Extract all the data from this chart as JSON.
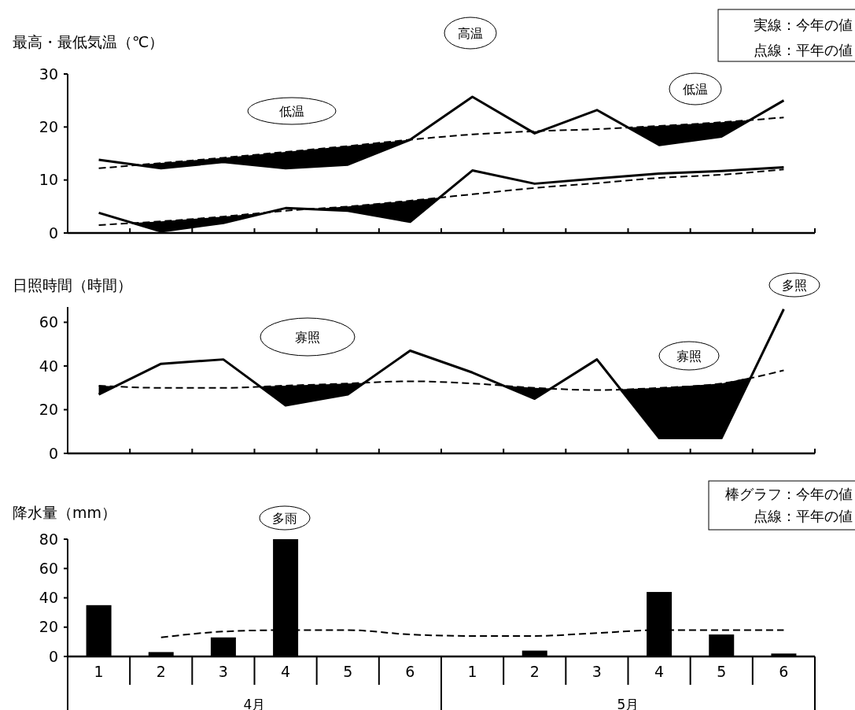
{
  "chart_data": [
    {
      "type": "line",
      "title": "最高・最低気温（℃）",
      "categories": [
        null,
        null,
        null,
        null,
        null,
        null,
        null,
        null,
        null,
        null,
        null,
        null
      ],
      "ylim": [
        0,
        30
      ],
      "yticks": [
        0,
        10,
        20,
        30
      ],
      "tick_labels": "y",
      "grid": false,
      "series": [
        {
          "color": "#000000",
          "line_style": "solid",
          "values": [
            13.8,
            12.2,
            13.4,
            12.2,
            12.9,
            17.6,
            25.7,
            18.8,
            23.2,
            16.6,
            18.2,
            25.0
          ]
        },
        {
          "color": "#000000",
          "line_style": "dashed",
          "values": [
            12.2,
            13.2,
            14.2,
            15.3,
            16.4,
            17.6,
            18.6,
            19.2,
            19.6,
            20.2,
            20.9,
            21.8
          ]
        },
        {
          "color": "#000000",
          "line_style": "solid",
          "values": [
            3.8,
            0.3,
            1.9,
            4.7,
            4.2,
            2.1,
            11.8,
            9.3,
            10.3,
            11.2,
            11.7,
            12.4
          ]
        },
        {
          "color": "#000000",
          "line_style": "dashed",
          "values": [
            1.5,
            2.2,
            3.1,
            4.2,
            5.0,
            6.1,
            7.3,
            8.5,
            9.4,
            10.4,
            11.0,
            12.0
          ]
        }
      ],
      "annotations": [
        "低温",
        "高温",
        "低温",
        "実線：今年の値",
        "点線：平年の値"
      ]
    },
    {
      "type": "line",
      "title": "日照時間（時間）",
      "categories": [
        null,
        null,
        null,
        null,
        null,
        null,
        null,
        null,
        null,
        null,
        null,
        null
      ],
      "ylim": [
        0,
        67
      ],
      "yticks": [
        0,
        20,
        40,
        60
      ],
      "tick_labels": "y",
      "grid": false,
      "series": [
        {
          "color": "#000000",
          "line_style": "solid",
          "values": [
            27,
            41,
            43,
            22,
            27,
            47,
            37,
            25,
            43,
            7,
            7,
            66
          ]
        },
        {
          "color": "#000000",
          "line_style": "dashed",
          "values": [
            31,
            30,
            30,
            31,
            32,
            33,
            32,
            30,
            29,
            30,
            32,
            38
          ]
        }
      ],
      "annotations": [
        "寡照",
        "寡照",
        "多照"
      ]
    },
    {
      "type": "bar",
      "title": "降水量（mm）",
      "categories": [
        "1",
        "2",
        "3",
        "4",
        "5",
        "6",
        "1",
        "2",
        "3",
        "4",
        "5",
        "6"
      ],
      "ylim": [
        0,
        80
      ],
      "yticks": [
        0,
        20,
        40,
        60,
        80
      ],
      "grid": false,
      "series": [
        {
          "type": "bar",
          "color": "#000000",
          "values": [
            35,
            3,
            13,
            80,
            0,
            0,
            0,
            4,
            0,
            44,
            15,
            2
          ]
        },
        {
          "type": "line",
          "color": "#000000",
          "line_style": "dashed",
          "values": [
            null,
            13,
            17,
            18,
            18,
            15,
            14,
            14,
            16,
            18,
            18,
            18
          ]
        }
      ],
      "annotations": [
        "多雨",
        "棒グラフ：今年の値",
        "点線：平年の値",
        "4月",
        "5月"
      ]
    }
  ]
}
